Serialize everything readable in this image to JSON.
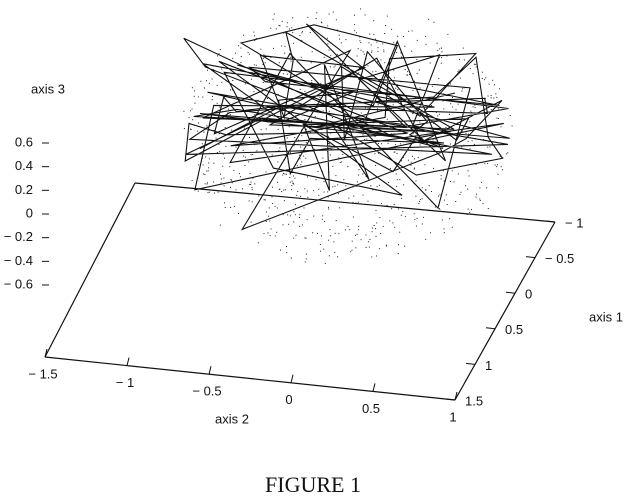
{
  "figure": {
    "caption": "FIGURE 1",
    "axis_3": {
      "label": "axis 3",
      "ticks": [
        0.6,
        0.4,
        0.2,
        0,
        {
          "value": -0.2,
          "label": "− 0.2"
        },
        {
          "value": -0.4,
          "label": "− 0.4"
        },
        {
          "value": -0.6,
          "label": "− 0.6"
        }
      ]
    },
    "axis_2": {
      "label": "axis 2",
      "ticks": [
        {
          "value": -1.5,
          "label": "− 1.5"
        },
        {
          "value": -1,
          "label": "− 1"
        },
        {
          "value": -0.5,
          "label": "− 0.5"
        },
        0,
        0.5,
        1
      ]
    },
    "axis_1": {
      "label": "axis 1",
      "ticks": [
        {
          "value": -1,
          "label": "− 1"
        },
        {
          "value": -0.5,
          "label": "− 0.5"
        },
        0,
        0.5,
        1,
        1.5
      ]
    }
  }
}
